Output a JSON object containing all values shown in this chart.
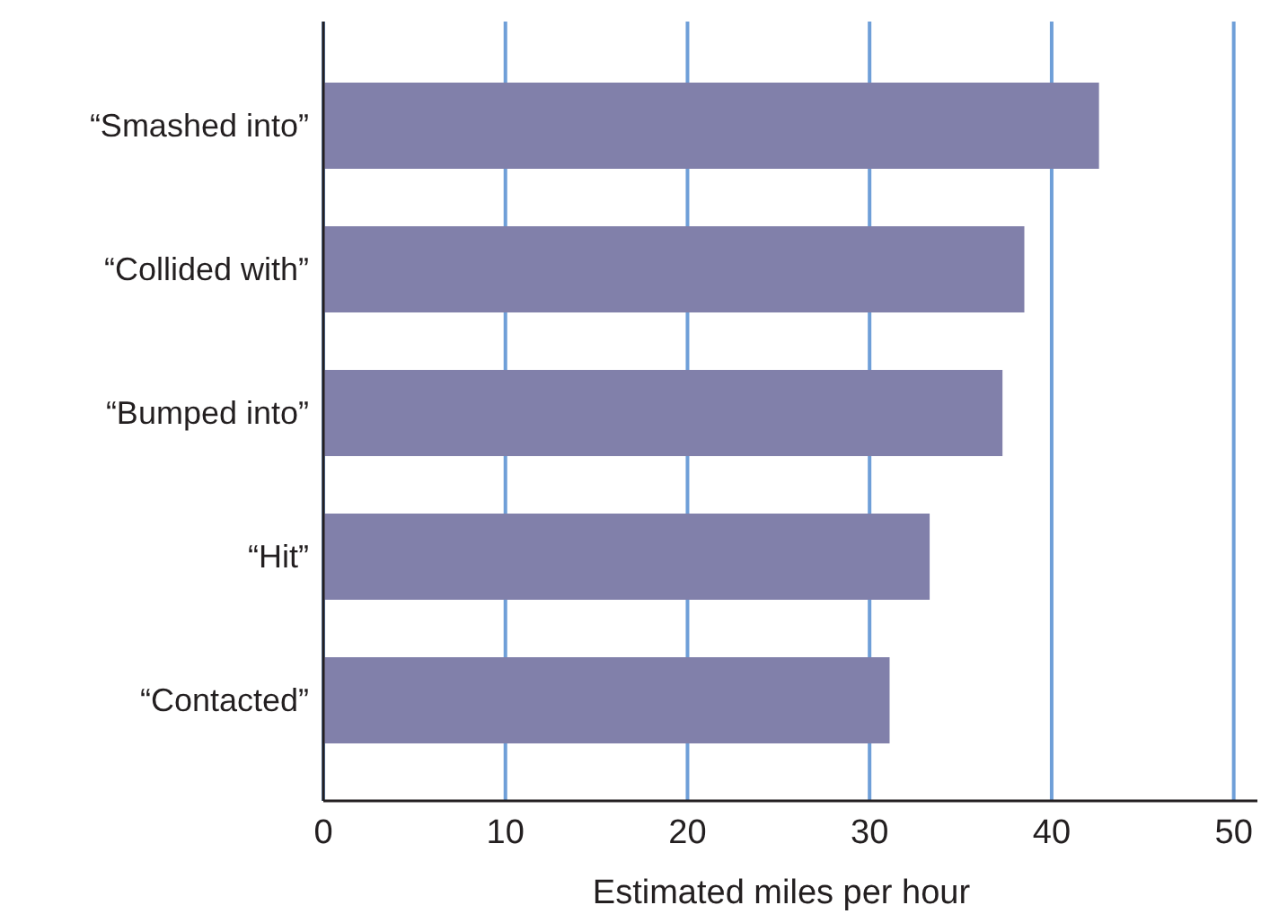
{
  "chart_data": {
    "type": "bar",
    "orientation": "horizontal",
    "xlabel": "Estimated miles per hour",
    "categories": [
      "“Smashed into”",
      "“Collided with”",
      "“Bumped into”",
      "“Hit”",
      "“Contacted”"
    ],
    "values": [
      42.6,
      38.5,
      37.3,
      33.3,
      31.1
    ],
    "color": "#8180aa",
    "xlim": [
      0,
      51.3
    ],
    "xticks": [
      0,
      10,
      20,
      30,
      40,
      50
    ],
    "grid": "x"
  }
}
